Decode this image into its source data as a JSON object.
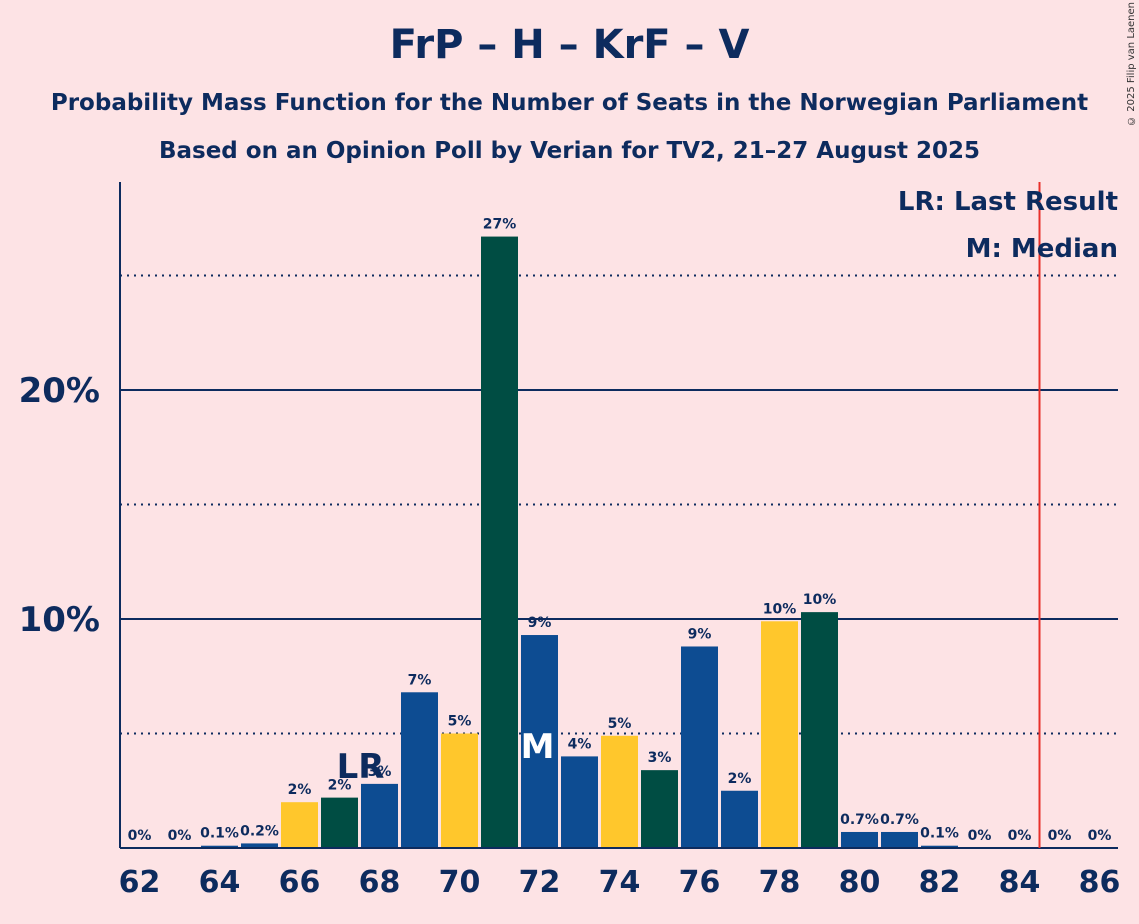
{
  "chart_data": {
    "type": "bar",
    "title": "FrP – H – KrF – V",
    "subtitle_1": "Probability Mass Function for the Number of Seats in the Norwegian Parliament",
    "subtitle_2": "Based on an Opinion Poll by Verian for TV2, 21–27 August 2025",
    "copyright": "© 2025 Filip van Laenen",
    "x": [
      62,
      63,
      64,
      65,
      66,
      67,
      68,
      69,
      70,
      71,
      72,
      73,
      74,
      75,
      76,
      77,
      78,
      79,
      80,
      81,
      82,
      83,
      84,
      85,
      86
    ],
    "values": [
      0,
      0,
      0.1,
      0.2,
      2,
      2.2,
      2.8,
      6.8,
      5,
      26.7,
      9.3,
      4,
      4.9,
      3.4,
      8.8,
      2.5,
      9.9,
      10.3,
      0.7,
      0.7,
      0.1,
      0,
      0,
      0,
      0
    ],
    "value_labels": [
      "0%",
      "0%",
      "0.1%",
      "0.2%",
      "2%",
      "2%",
      "3%",
      "7%",
      "5%",
      "27%",
      "9%",
      "4%",
      "5%",
      "3%",
      "9%",
      "2%",
      "10%",
      "10%",
      "0.7%",
      "0.7%",
      "0.1%",
      "0%",
      "0%",
      "0%",
      "0%"
    ],
    "bar_colors": [
      "#0D4C92",
      "#0D4C92",
      "#0D4C92",
      "#0D4C92",
      "#FFC72C",
      "#004D43",
      "#0D4C92",
      "#0D4C92",
      "#FFC72C",
      "#004D43",
      "#0D4C92",
      "#0D4C92",
      "#FFC72C",
      "#004D43",
      "#0D4C92",
      "#0D4C92",
      "#FFC72C",
      "#004D43",
      "#0D4C92",
      "#0D4C92",
      "#0D4C92",
      "#0D4C92",
      "#0D4C92",
      "#0D4C92",
      "#0D4C92"
    ],
    "xticks": [
      62,
      64,
      66,
      68,
      70,
      72,
      74,
      76,
      78,
      80,
      82,
      84,
      86
    ],
    "ylim": [
      0,
      29
    ],
    "yticks": [
      {
        "value": 10,
        "label": "10%"
      },
      {
        "value": 20,
        "label": "20%"
      }
    ],
    "solid_grid": [
      10,
      20
    ],
    "dotted_grid": [
      5,
      15,
      25
    ],
    "last_result": {
      "seat": 68,
      "label": "LR"
    },
    "median": {
      "seat": 72,
      "label": "M"
    },
    "majority_line": 84.5,
    "legend": [
      "LR: Last Result",
      "M: Median"
    ],
    "legend_position": "top-right",
    "colors": {
      "background": "#FDE3E5",
      "text": "#0D2B5E",
      "majority": "#E8302A"
    }
  }
}
